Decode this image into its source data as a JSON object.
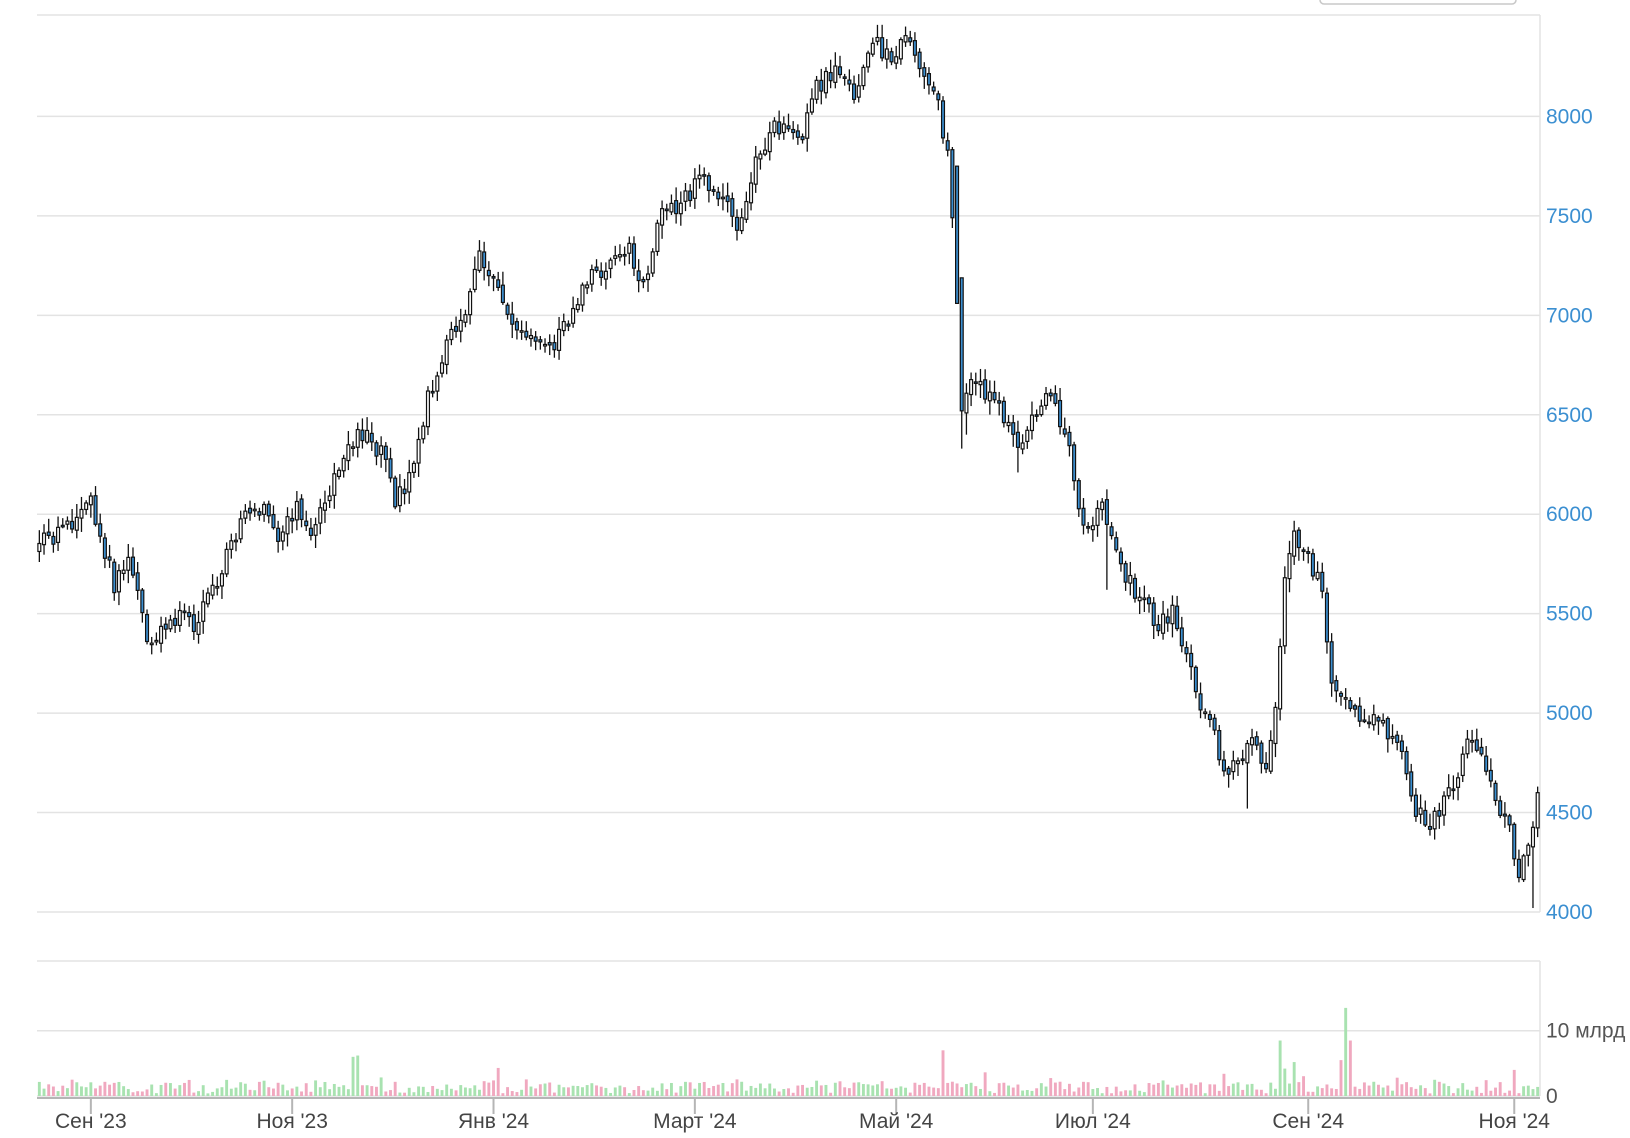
{
  "chart_data": {
    "type": "candlestick",
    "price_axis": {
      "ticks": [
        4000,
        4500,
        5000,
        5500,
        6000,
        6500,
        7000,
        7500,
        8000
      ],
      "labels": [
        "4000",
        "4500",
        "5000",
        "5500",
        "6000",
        "6500",
        "7000",
        "7500",
        "8000"
      ],
      "range": [
        4000,
        8510
      ]
    },
    "volume_axis": {
      "ticks": [
        0,
        10
      ],
      "labels": [
        "0",
        "10 млрд"
      ],
      "range": [
        0,
        19
      ],
      "unit": "млрд"
    },
    "x_axis": {
      "labels": [
        "Сен '23",
        "Ноя '23",
        "Янв '24",
        "Март '24",
        "Май '24",
        "Июл '24",
        "Сен '24",
        "Ноя '24"
      ],
      "label_day_index": [
        11,
        54,
        97,
        140,
        183,
        225,
        271,
        315
      ]
    },
    "grid": true,
    "trend_keypoints": [
      [
        0,
        5850
      ],
      [
        5,
        5900
      ],
      [
        8,
        5980
      ],
      [
        11,
        6080
      ],
      [
        13,
        5880
      ],
      [
        16,
        5650
      ],
      [
        19,
        5780
      ],
      [
        21,
        5620
      ],
      [
        23,
        5320
      ],
      [
        26,
        5430
      ],
      [
        30,
        5500
      ],
      [
        33,
        5450
      ],
      [
        36,
        5560
      ],
      [
        40,
        5800
      ],
      [
        44,
        5990
      ],
      [
        48,
        6030
      ],
      [
        51,
        5880
      ],
      [
        55,
        6050
      ],
      [
        58,
        5890
      ],
      [
        62,
        6100
      ],
      [
        66,
        6380
      ],
      [
        70,
        6390
      ],
      [
        74,
        6280
      ],
      [
        76,
        6060
      ],
      [
        79,
        6180
      ],
      [
        83,
        6580
      ],
      [
        87,
        6860
      ],
      [
        91,
        7000
      ],
      [
        94,
        7300
      ],
      [
        97,
        7200
      ],
      [
        100,
        7020
      ],
      [
        103,
        6880
      ],
      [
        106,
        6900
      ],
      [
        110,
        6870
      ],
      [
        114,
        7030
      ],
      [
        118,
        7200
      ],
      [
        122,
        7260
      ],
      [
        126,
        7320
      ],
      [
        129,
        7150
      ],
      [
        133,
        7520
      ],
      [
        137,
        7560
      ],
      [
        141,
        7680
      ],
      [
        145,
        7620
      ],
      [
        149,
        7450
      ],
      [
        152,
        7700
      ],
      [
        156,
        7930
      ],
      [
        160,
        7950
      ],
      [
        163,
        7920
      ],
      [
        166,
        8150
      ],
      [
        170,
        8220
      ],
      [
        174,
        8120
      ],
      [
        178,
        8370
      ],
      [
        182,
        8300
      ],
      [
        186,
        8400
      ],
      [
        189,
        8200
      ],
      [
        192,
        8050
      ],
      [
        194,
        7800
      ],
      [
        196,
        7200
      ],
      [
        197,
        6500
      ],
      [
        200,
        6700
      ],
      [
        203,
        6580
      ],
      [
        206,
        6500
      ],
      [
        209,
        6350
      ],
      [
        212,
        6480
      ],
      [
        215,
        6600
      ],
      [
        218,
        6480
      ],
      [
        220,
        6350
      ],
      [
        222,
        6050
      ],
      [
        224,
        5900
      ],
      [
        227,
        6050
      ],
      [
        230,
        5800
      ],
      [
        233,
        5650
      ],
      [
        236,
        5550
      ],
      [
        239,
        5450
      ],
      [
        242,
        5500
      ],
      [
        245,
        5300
      ],
      [
        248,
        5050
      ],
      [
        251,
        4900
      ],
      [
        253,
        4700
      ],
      [
        256,
        4760
      ],
      [
        259,
        4850
      ],
      [
        262,
        4720
      ],
      [
        264,
        5000
      ],
      [
        266,
        5700
      ],
      [
        268,
        5900
      ],
      [
        271,
        5800
      ],
      [
        274,
        5600
      ],
      [
        276,
        5150
      ],
      [
        279,
        5100
      ],
      [
        282,
        4950
      ],
      [
        285,
        5000
      ],
      [
        288,
        4900
      ],
      [
        291,
        4800
      ],
      [
        294,
        4520
      ],
      [
        297,
        4450
      ],
      [
        300,
        4550
      ],
      [
        303,
        4700
      ],
      [
        305,
        4860
      ],
      [
        308,
        4750
      ],
      [
        311,
        4550
      ],
      [
        314,
        4400
      ],
      [
        316,
        4200
      ],
      [
        318,
        4300
      ],
      [
        320,
        4600
      ]
    ],
    "volume_spikes": [
      [
        7,
        2.5
      ],
      [
        67,
        6.0
      ],
      [
        68,
        6.2
      ],
      [
        98,
        4.3
      ],
      [
        193,
        7.0
      ],
      [
        194,
        2.0
      ],
      [
        265,
        8.5
      ],
      [
        266,
        4.2
      ],
      [
        268,
        5.2
      ],
      [
        278,
        5.5
      ],
      [
        279,
        13.5
      ],
      [
        280,
        8.5
      ],
      [
        291,
        1.8
      ],
      [
        315,
        4.0
      ]
    ],
    "last_price": 4600,
    "last_label": ""
  }
}
